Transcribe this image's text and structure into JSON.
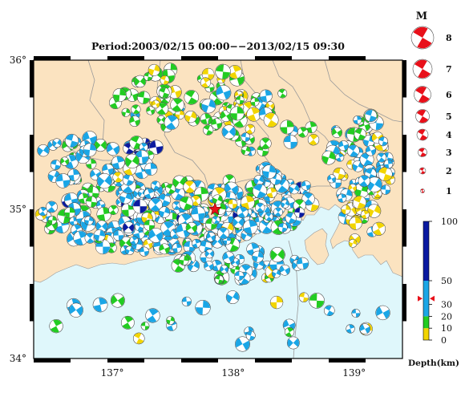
{
  "title": "Period:2003/02/15 00:00−−2013/02/15 09:30",
  "map": {
    "lat_ticks": [
      {
        "value": 36,
        "label": "36°"
      },
      {
        "value": 35,
        "label": "35°"
      },
      {
        "value": 34,
        "label": "34°"
      }
    ],
    "lon_ticks": [
      {
        "value": 137,
        "label": "137°"
      },
      {
        "value": 138,
        "label": "138°"
      },
      {
        "value": 139,
        "label": "139°"
      }
    ],
    "lon_range": [
      136.35,
      139.4
    ],
    "lat_range": [
      34.0,
      36.0
    ],
    "colors": {
      "land": "#fbe3c0",
      "sea": "#dff7fb",
      "border": "#9a9a9a"
    },
    "mainshock": {
      "lon": 137.85,
      "lat": 35.0,
      "color": "#e8101a"
    }
  },
  "magnitude_legend": {
    "title": "M",
    "items": [
      "8",
      "7",
      "6",
      "5",
      "4",
      "3",
      "2",
      "1"
    ],
    "color": "#e8101a"
  },
  "depth_legend": {
    "title": "Depth(km)",
    "ticks": [
      "100",
      "50",
      "30",
      "20",
      "10",
      "0"
    ],
    "bands": [
      {
        "from": 0,
        "to": 10,
        "color": "#f2d500"
      },
      {
        "from": 10,
        "to": 20,
        "color": "#22cc22"
      },
      {
        "from": 20,
        "to": 50,
        "color": "#1aa6e6"
      },
      {
        "from": 50,
        "to": 100,
        "color": "#0a1aa0"
      }
    ],
    "marker_depth": 35,
    "marker_color": "#e8101a"
  },
  "events_note": ""
}
